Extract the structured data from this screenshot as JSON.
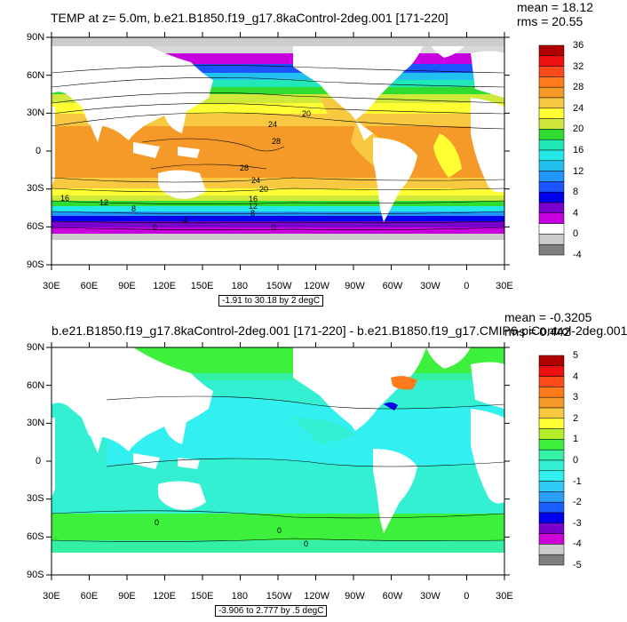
{
  "panels": [
    {
      "title": "TEMP at z=   5.0m, b.e21.B1850.f19_g17.8kaControl-2deg.001 [171-220]",
      "mean": "mean = 18.12",
      "rms": "rms = 20.55",
      "range_text": "-1.91 to 30.18 by 2 degC",
      "lat_ticks": [
        "90N",
        "60N",
        "30N",
        "0",
        "30S",
        "60S",
        "90S"
      ],
      "lon_ticks": [
        "30E",
        "60E",
        "90E",
        "120E",
        "150E",
        "180",
        "150W",
        "120W",
        "90W",
        "60W",
        "30W",
        "0",
        "30E"
      ],
      "colorbar_labels": [
        "36",
        "32",
        "28",
        "24",
        "20",
        "16",
        "12",
        "8",
        "4",
        "0",
        "-4"
      ],
      "contour_labels": [
        "24",
        "20",
        "28",
        "28",
        "24",
        "20",
        "16",
        "12",
        "8",
        "4",
        "0",
        "16",
        "12",
        "8",
        "0"
      ]
    },
    {
      "title": "b.e21.B1850.f19_g17.8kaControl-2deg.001 [171-220] - b.e21.B1850.f19_g17.CMIP6-piControl-2deg.001",
      "mean": "mean = -0.3205",
      "rms": "rms = 0.442",
      "range_text": "-3.906 to 2.777 by .5 degC",
      "lat_ticks": [
        "90N",
        "60N",
        "30N",
        "0",
        "30S",
        "60S",
        "90S"
      ],
      "lon_ticks": [
        "30E",
        "60E",
        "90E",
        "120E",
        "150E",
        "180",
        "150W",
        "120W",
        "90W",
        "60W",
        "30W",
        "0",
        "30E"
      ],
      "colorbar_labels": [
        "5",
        "4",
        "3",
        "2",
        "1",
        "0",
        "-1",
        "-2",
        "-3",
        "-4",
        "-5"
      ],
      "contour_labels": [
        "0",
        "0",
        "0"
      ]
    }
  ],
  "colors": {
    "cb1": [
      "#b00000",
      "#ee1010",
      "#ff4a1a",
      "#ff7a1a",
      "#f59a28",
      "#f7c840",
      "#ffff33",
      "#cfe83a",
      "#2fdc2f",
      "#22e8b8",
      "#22e8e8",
      "#22c0ee",
      "#2296ff",
      "#1b55ff",
      "#0000ee",
      "#7a00cc",
      "#c800e0",
      "#ffffff",
      "#cccccc",
      "#7f7f7f"
    ],
    "cb2": [
      "#b00000",
      "#ee1010",
      "#ff4a1a",
      "#ff7a1a",
      "#f59a28",
      "#f7c840",
      "#ffff33",
      "#b4f02a",
      "#3cf03c",
      "#33f0a6",
      "#33f0d2",
      "#33f0f0",
      "#2ecbf5",
      "#2a9ff5",
      "#1b60ff",
      "#0000ee",
      "#7a00cc",
      "#d000d8",
      "#cccccc",
      "#7f7f7f"
    ],
    "land": "#ffffff",
    "ice": "#cccccc"
  }
}
